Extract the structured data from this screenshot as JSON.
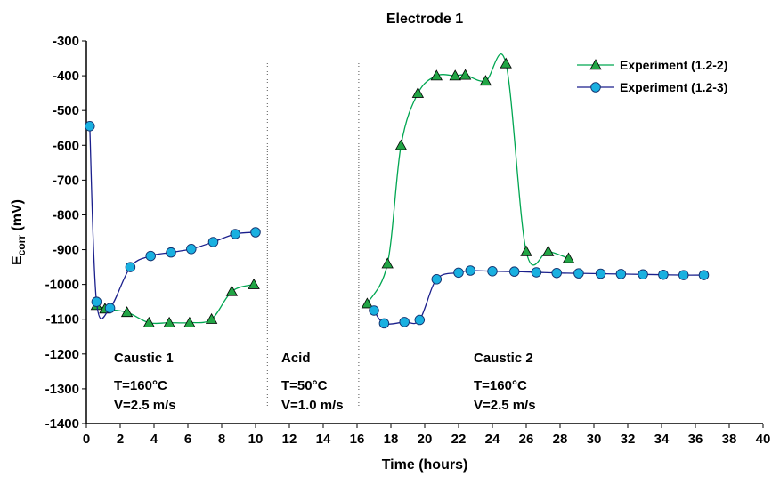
{
  "chart_data": {
    "type": "line",
    "title": "Electrode 1",
    "xlabel": "Time (hours)",
    "ylabel_main": "E",
    "ylabel_sub": "corr",
    "ylabel_unit": " (mV)",
    "xlim": [
      0,
      40
    ],
    "ylim": [
      -1400,
      -300
    ],
    "x_ticks": [
      "0",
      "2",
      "4",
      "6",
      "8",
      "10",
      "12",
      "14",
      "16",
      "18",
      "20",
      "22",
      "24",
      "26",
      "28",
      "30",
      "32",
      "34",
      "36",
      "38",
      "40"
    ],
    "y_ticks": [
      "-300",
      "-400",
      "-500",
      "-600",
      "-700",
      "-800",
      "-900",
      "-1000",
      "-1100",
      "-1200",
      "-1300",
      "-1400"
    ],
    "grid": false,
    "legend_position": "top-right",
    "series": [
      {
        "name": "Experiment (1.2-2)",
        "marker": "triangle",
        "line_color": "#00a651",
        "marker_fill": "#22a545",
        "segments": [
          {
            "x": [
              0.6,
              1.1,
              2.4,
              3.7,
              4.9,
              6.1,
              7.4,
              8.6,
              9.9
            ],
            "y": [
              -1060,
              -1070,
              -1080,
              -1110,
              -1110,
              -1110,
              -1100,
              -1020,
              -1000
            ]
          },
          {
            "x": [
              16.6,
              17.8,
              18.6,
              19.6,
              20.7,
              21.8,
              22.4,
              23.6,
              24.8,
              26.0,
              27.3,
              28.5
            ],
            "y": [
              -1055,
              -940,
              -600,
              -450,
              -400,
              -400,
              -398,
              -415,
              -365,
              -905,
              -905,
              -925
            ]
          }
        ]
      },
      {
        "name": "Experiment (1.2-3)",
        "marker": "circle",
        "line_color": "#1a1f8c",
        "marker_fill": "#19b0e0",
        "segments": [
          {
            "x": [
              0.2,
              0.6,
              1.4,
              2.6,
              3.8,
              5.0,
              6.2,
              7.5,
              8.8,
              10.0
            ],
            "y": [
              -545,
              -1050,
              -1068,
              -950,
              -918,
              -908,
              -898,
              -878,
              -855,
              -850
            ]
          },
          {
            "x": [
              17.0,
              17.6,
              18.8,
              19.7,
              20.7,
              22.0,
              22.7,
              24.0,
              25.3,
              26.6,
              27.8,
              29.1,
              30.4,
              31.6,
              32.9,
              34.1,
              35.3,
              36.5
            ],
            "y": [
              -1075,
              -1112,
              -1108,
              -1102,
              -985,
              -966,
              -960,
              -962,
              -963,
              -965,
              -967,
              -968,
              -969,
              -970,
              -971,
              -972,
              -973,
              -973
            ]
          }
        ]
      }
    ],
    "phase_dividers_x": [
      10.7,
      16.1
    ],
    "annotations": [
      {
        "lines": [
          "Caustic 1",
          "T=160°C",
          "V=2.5 m/s"
        ]
      },
      {
        "lines": [
          "Acid",
          "T=50°C",
          "V=1.0 m/s"
        ]
      },
      {
        "lines": [
          "Caustic 2",
          "T=160°C",
          "V=2.5 m/s"
        ]
      }
    ]
  }
}
